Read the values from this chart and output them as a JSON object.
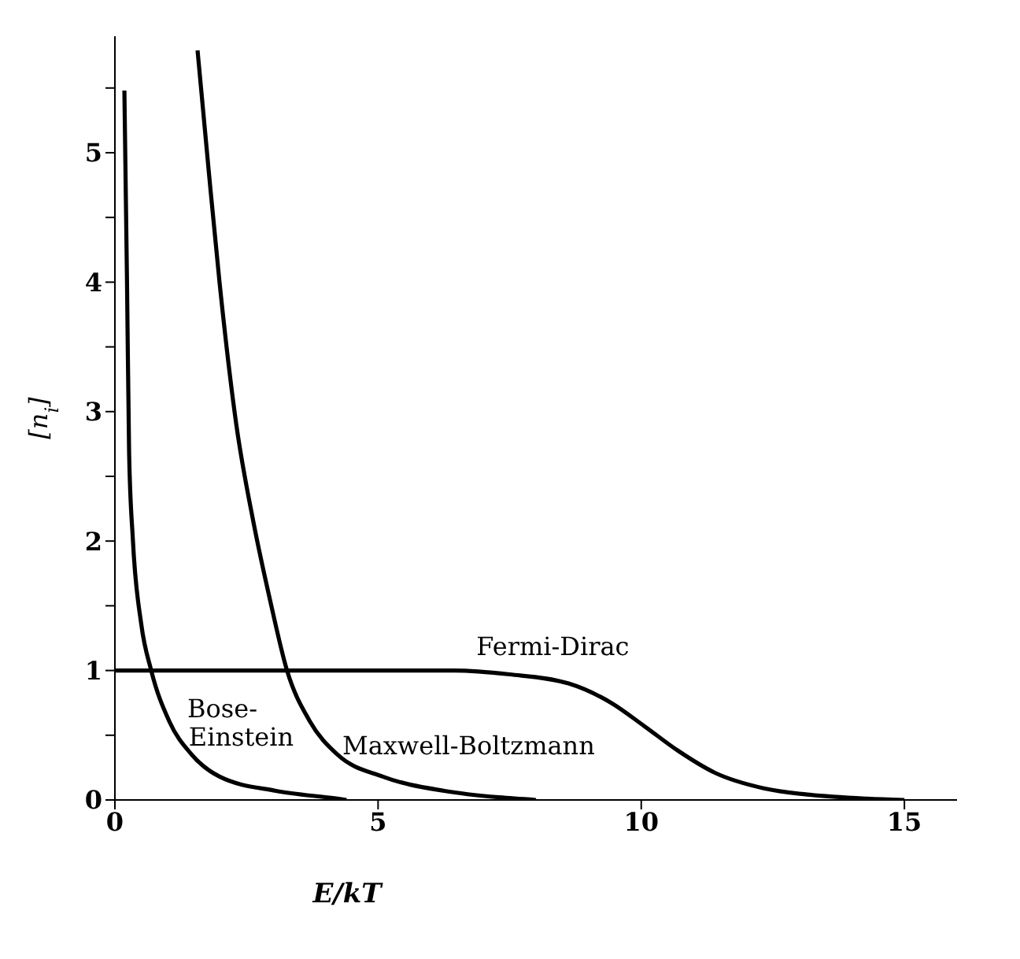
{
  "chart_data": {
    "type": "line",
    "xlabel": "E/kT",
    "ylabel": "[n$_{i}$]",
    "xlim": [
      0,
      16
    ],
    "ylim": [
      0,
      5.9
    ],
    "xticks": [
      0,
      5,
      10,
      15
    ],
    "yticks": [
      0,
      {
        "value": 0.5,
        "label": null
      },
      1,
      {
        "value": 1.5,
        "label": null
      },
      2,
      {
        "value": 2.5,
        "label": null
      },
      3,
      {
        "value": 3.5,
        "label": null
      },
      4,
      {
        "value": 4.5,
        "label": null
      },
      5,
      {
        "value": 5.5,
        "label": null
      }
    ],
    "grid": false,
    "legend": false,
    "marker": "none",
    "line_style": "solid",
    "series": [
      {
        "name": "Bose-\nEinstein",
        "color": "#000000",
        "x": [
          0.18,
          0.23,
          0.27,
          0.34,
          0.5,
          0.69,
          1.03,
          1.46,
          1.99,
          3.06,
          4.23,
          4.4
        ],
        "values": [
          5.48,
          4.0,
          2.68,
          2.02,
          1.36,
          1.0,
          0.61,
          0.35,
          0.18,
          0.07,
          0.01,
          0
        ]
      },
      {
        "name": "Maxwell-Boltzmann",
        "color": "#000000",
        "x": [
          1.57,
          1.78,
          1.99,
          2.31,
          2.63,
          2.95,
          3.27,
          3.7,
          4.23,
          5.09,
          6.26,
          7.3,
          8.0
        ],
        "values": [
          5.79,
          4.87,
          3.99,
          2.89,
          2.15,
          1.54,
          1.0,
          0.61,
          0.35,
          0.18,
          0.07,
          0.02,
          0
        ]
      },
      {
        "name": "Fermi-Dirac",
        "color": "#000000",
        "x": [
          0,
          5,
          6.45,
          7.5,
          8.62,
          9.43,
          10.06,
          10.7,
          11.4,
          12.33,
          13.2,
          14.3,
          15.0
        ],
        "values": [
          1.0,
          1.0,
          1.0,
          0.97,
          0.9,
          0.75,
          0.57,
          0.38,
          0.21,
          0.09,
          0.04,
          0.01,
          0
        ]
      }
    ]
  }
}
